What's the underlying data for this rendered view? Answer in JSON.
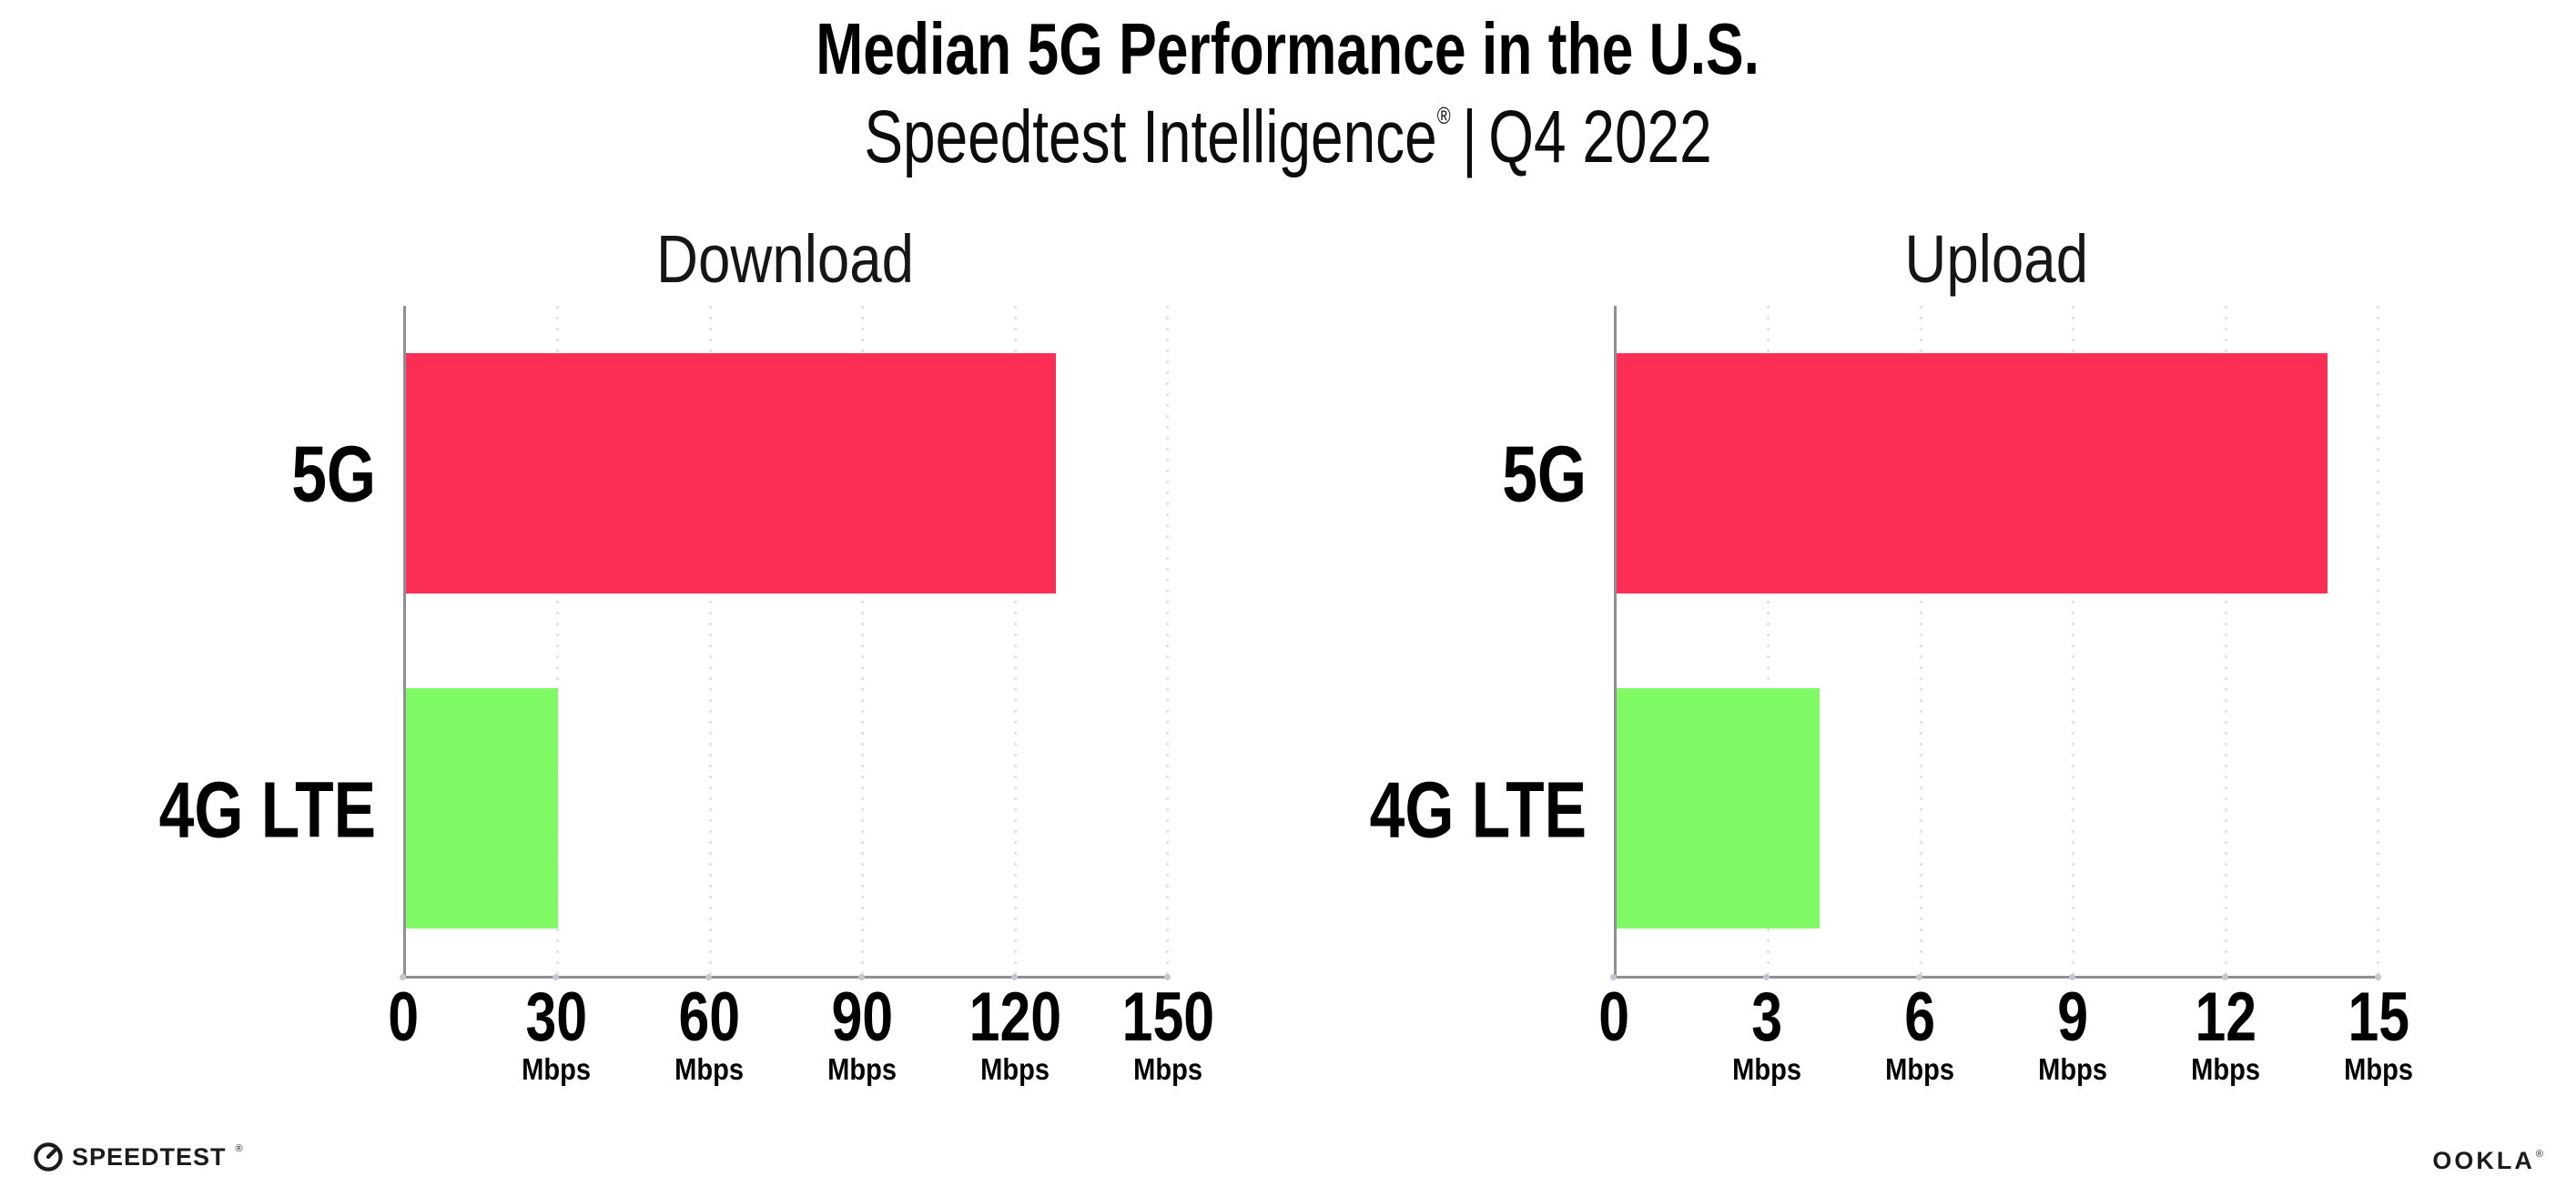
{
  "page": {
    "background": "#FFFFFF"
  },
  "header": {
    "title": "Median 5G Performance in the U.S.",
    "subtitle": {
      "brand": "Speedtest Intelligence",
      "registered_mark": "®",
      "separator": "|",
      "period": "Q4 2022"
    }
  },
  "colors": {
    "bar_5g": "#FD2E56",
    "bar_4g_lte": "#80FA64",
    "gridline": "#E3E3ED",
    "axis": "#8F8F94",
    "tick_dot": "#C6C6D0",
    "title_text": "#000000",
    "body_text": "#17171A"
  },
  "chart_data": [
    {
      "type": "bar",
      "orientation": "horizontal",
      "title": "Download",
      "categories": [
        "5G",
        "4G LTE"
      ],
      "values": [
        128,
        30
      ],
      "unit": "Mbps",
      "xlim": [
        0,
        150
      ],
      "xticks": [
        0,
        30,
        60,
        90,
        120,
        150
      ],
      "bar_colors": [
        "#FD2E56",
        "#80FA64"
      ],
      "grid": "vertical-dotted",
      "legend": "none"
    },
    {
      "type": "bar",
      "orientation": "horizontal",
      "title": "Upload",
      "categories": [
        "5G",
        "4G LTE"
      ],
      "values": [
        14,
        4
      ],
      "unit": "Mbps",
      "xlim": [
        0,
        15
      ],
      "xticks": [
        0,
        3,
        6,
        9,
        12,
        15
      ],
      "bar_colors": [
        "#FD2E56",
        "#80FA64"
      ],
      "grid": "vertical-dotted",
      "legend": "none"
    }
  ],
  "footer": {
    "speedtest_wordmark": "SPEEDTEST",
    "speedtest_mark": "®",
    "speedtest_icon": "gauge-icon",
    "ookla_wordmark": "OOKLA",
    "ookla_mark": "®"
  }
}
